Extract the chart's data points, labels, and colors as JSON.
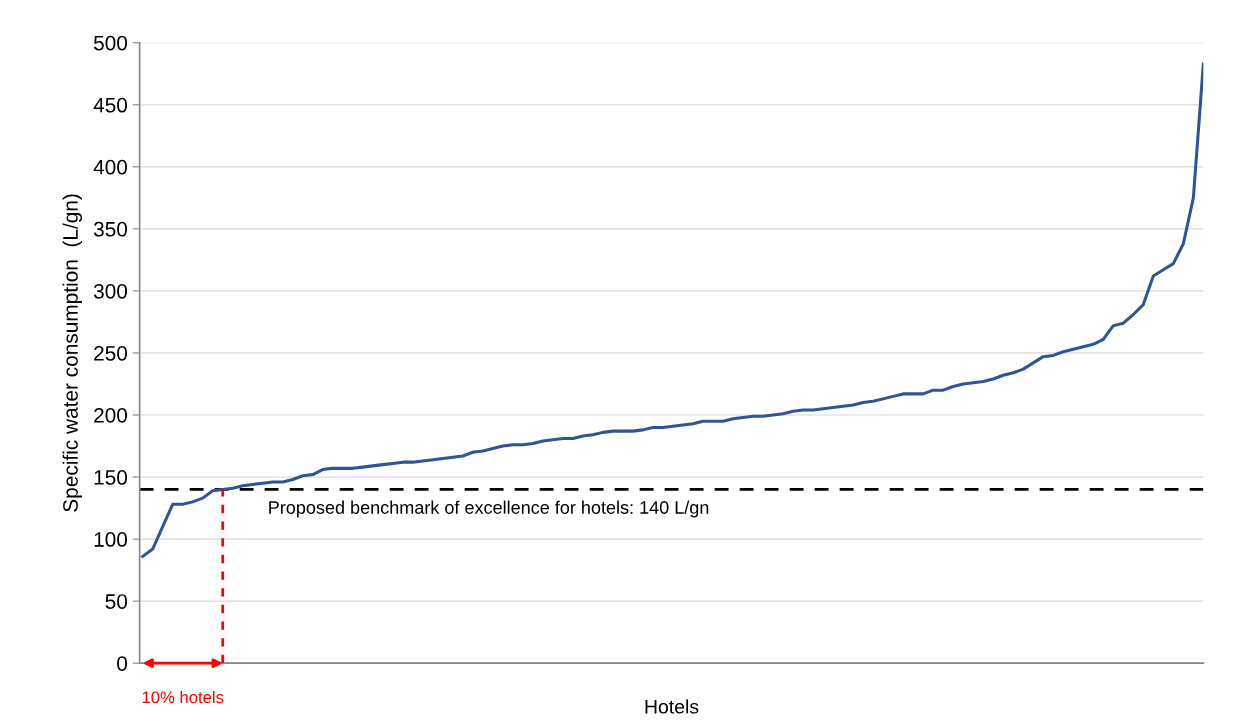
{
  "chart_data": {
    "type": "line",
    "xlabel": "Hotels",
    "ylabel": "Specific water consumption  (L/gn)",
    "categories": [
      null,
      null,
      null,
      null,
      null,
      null,
      null,
      null,
      null,
      null,
      null,
      null,
      null,
      null,
      null,
      null,
      null,
      null,
      null,
      null,
      null,
      null,
      null,
      null,
      null,
      null,
      null,
      null,
      null,
      null,
      null,
      null,
      null,
      null,
      null,
      null,
      null,
      null,
      null,
      null,
      null,
      null,
      null,
      null,
      null,
      null,
      null,
      null,
      null,
      null,
      null,
      null,
      null,
      null,
      null,
      null,
      null,
      null,
      null,
      null,
      null,
      null,
      null,
      null,
      null,
      null,
      null,
      null,
      null,
      null,
      null,
      null,
      null,
      null,
      null,
      null,
      null,
      null,
      null,
      null,
      null,
      null,
      null,
      null,
      null,
      null,
      null,
      null,
      null,
      null,
      null,
      null,
      null,
      null,
      null,
      null,
      null,
      null,
      null,
      null,
      null,
      null,
      null,
      null,
      null,
      null,
      null
    ],
    "series": [
      {
        "color": "#2f5597",
        "values": [
          86,
          92,
          110,
          128,
          128,
          130,
          133,
          139,
          140,
          141,
          143,
          144,
          145,
          146,
          146,
          148,
          151,
          152,
          156,
          157,
          157,
          157,
          158,
          159,
          160,
          161,
          162,
          162,
          163,
          164,
          165,
          166,
          167,
          170,
          171,
          173,
          175,
          176,
          176,
          177,
          179,
          180,
          181,
          181,
          183,
          184,
          186,
          187,
          187,
          187,
          188,
          190,
          190,
          191,
          192,
          193,
          195,
          195,
          195,
          197,
          198,
          199,
          199,
          200,
          201,
          203,
          204,
          204,
          205,
          206,
          207,
          208,
          210,
          211,
          213,
          215,
          217,
          217,
          217,
          220,
          220,
          223,
          225,
          226,
          227,
          229,
          232,
          234,
          237,
          242,
          247,
          248,
          251,
          253,
          255,
          257,
          261,
          272,
          274,
          281,
          289,
          312,
          317,
          322,
          338,
          375,
          483
        ]
      }
    ],
    "ylim": [
      0,
      500
    ],
    "yticks": [
      0,
      50,
      100,
      150,
      200,
      250,
      300,
      350,
      400,
      450,
      500
    ],
    "grid": "y",
    "tick_labels": "y",
    "line_style": "solid",
    "marker": "none",
    "ref_lines": [
      {
        "axis": "y",
        "value": 140,
        "label": "Proposed benchmark of excellence for hotels: 140 L/gn",
        "color": "#000000",
        "line_style": "dashed"
      }
    ],
    "annotations": [
      "10% hotels"
    ]
  }
}
